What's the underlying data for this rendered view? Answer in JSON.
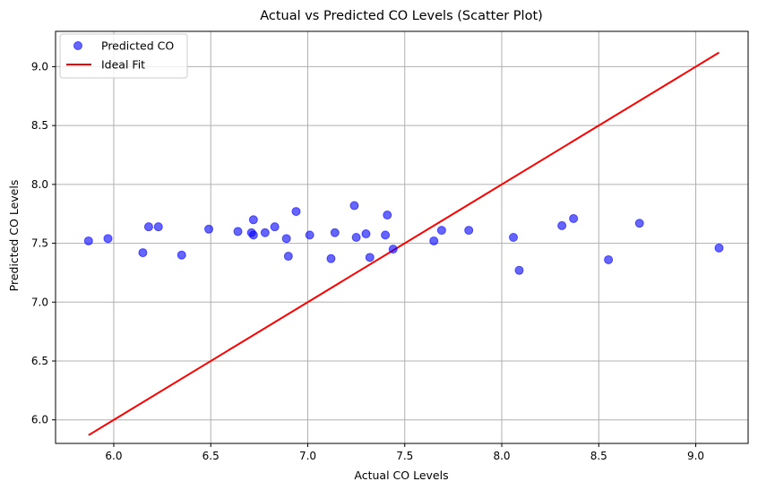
{
  "chart_data": {
    "type": "scatter",
    "title": "Actual vs Predicted CO Levels (Scatter Plot)",
    "xlabel": "Actual CO Levels",
    "ylabel": "Predicted CO Levels",
    "xlim": [
      5.7,
      9.27
    ],
    "ylim": [
      5.8,
      9.3
    ],
    "xticks": [
      6.0,
      6.5,
      7.0,
      7.5,
      8.0,
      8.5,
      9.0
    ],
    "yticks": [
      6.0,
      6.5,
      7.0,
      7.5,
      8.0,
      8.5,
      9.0
    ],
    "xtick_labels": [
      "6.0",
      "6.5",
      "7.0",
      "7.5",
      "8.0",
      "8.5",
      "9.0"
    ],
    "ytick_labels": [
      "6.0",
      "6.5",
      "7.0",
      "7.5",
      "8.0",
      "8.5",
      "9.0"
    ],
    "grid": true,
    "legend_position": "top-left",
    "series": [
      {
        "name": "Predicted CO",
        "kind": "scatter",
        "color": "#0000ff",
        "points": [
          {
            "x": 5.87,
            "y": 7.52
          },
          {
            "x": 5.97,
            "y": 7.54
          },
          {
            "x": 6.15,
            "y": 7.42
          },
          {
            "x": 6.18,
            "y": 7.64
          },
          {
            "x": 6.23,
            "y": 7.64
          },
          {
            "x": 6.35,
            "y": 7.4
          },
          {
            "x": 6.49,
            "y": 7.62
          },
          {
            "x": 6.64,
            "y": 7.6
          },
          {
            "x": 6.71,
            "y": 7.59
          },
          {
            "x": 6.72,
            "y": 7.7
          },
          {
            "x": 6.72,
            "y": 7.57
          },
          {
            "x": 6.78,
            "y": 7.59
          },
          {
            "x": 6.83,
            "y": 7.64
          },
          {
            "x": 6.89,
            "y": 7.54
          },
          {
            "x": 6.9,
            "y": 7.39
          },
          {
            "x": 6.94,
            "y": 7.77
          },
          {
            "x": 7.01,
            "y": 7.57
          },
          {
            "x": 7.12,
            "y": 7.37
          },
          {
            "x": 7.14,
            "y": 7.59
          },
          {
            "x": 7.24,
            "y": 7.82
          },
          {
            "x": 7.25,
            "y": 7.55
          },
          {
            "x": 7.3,
            "y": 7.58
          },
          {
            "x": 7.32,
            "y": 7.38
          },
          {
            "x": 7.4,
            "y": 7.57
          },
          {
            "x": 7.41,
            "y": 7.74
          },
          {
            "x": 7.44,
            "y": 7.45
          },
          {
            "x": 7.65,
            "y": 7.52
          },
          {
            "x": 7.69,
            "y": 7.61
          },
          {
            "x": 7.83,
            "y": 7.61
          },
          {
            "x": 8.06,
            "y": 7.55
          },
          {
            "x": 8.09,
            "y": 7.27
          },
          {
            "x": 8.31,
            "y": 7.65
          },
          {
            "x": 8.37,
            "y": 7.71
          },
          {
            "x": 8.55,
            "y": 7.36
          },
          {
            "x": 8.71,
            "y": 7.67
          },
          {
            "x": 9.12,
            "y": 7.46
          }
        ]
      },
      {
        "name": "Ideal Fit",
        "kind": "line",
        "color": "#ff0000",
        "points": [
          {
            "x": 5.87,
            "y": 5.87
          },
          {
            "x": 9.12,
            "y": 9.12
          }
        ]
      }
    ]
  }
}
